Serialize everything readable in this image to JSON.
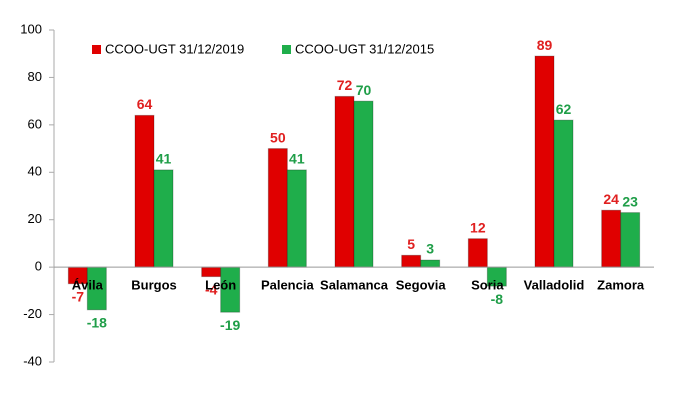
{
  "chart_data": {
    "type": "bar",
    "categories": [
      "Ávila",
      "Burgos",
      "León",
      "Palencia",
      "Salamanca",
      "Segovia",
      "Soria",
      "Valladolid",
      "Zamora"
    ],
    "series": [
      {
        "name": "CCOO-UGT 31/12/2019",
        "color": "#e00000",
        "label_color": "#e02020",
        "values": [
          -7,
          64,
          -4,
          50,
          72,
          5,
          12,
          89,
          24
        ]
      },
      {
        "name": "CCOO-UGT 31/12/2015",
        "color": "#1fae4b",
        "label_color": "#1f9e48",
        "values": [
          -18,
          41,
          -19,
          41,
          70,
          3,
          -8,
          62,
          23
        ]
      }
    ],
    "ylim": [
      -40,
      100
    ],
    "yticks": [
      -40,
      -20,
      0,
      20,
      40,
      60,
      80,
      100
    ],
    "grid": false,
    "legend": "top"
  }
}
